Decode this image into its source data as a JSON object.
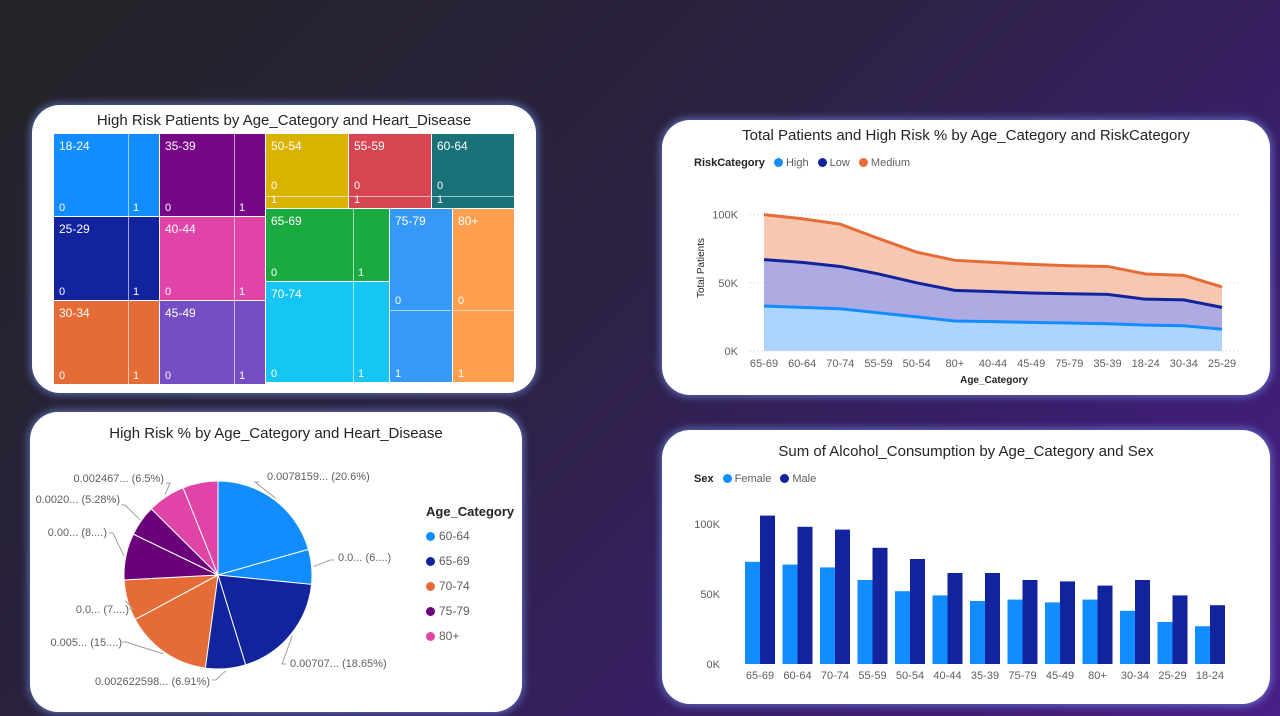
{
  "chart_data": [
    {
      "type": "treemap",
      "title": "High Risk Patients by Age_Category and Heart_Disease",
      "cells": [
        {
          "category": "18-24",
          "labels": [
            "0",
            "1"
          ],
          "color": "#118DFF"
        },
        {
          "category": "35-39",
          "labels": [
            "0",
            "1"
          ],
          "color": "#750985"
        },
        {
          "category": "50-54",
          "labels": [
            "0",
            "1"
          ],
          "color": "#D9B300"
        },
        {
          "category": "55-59",
          "labels": [
            "0",
            "1"
          ],
          "color": "#D64550"
        },
        {
          "category": "60-64",
          "labels": [
            "0",
            "1"
          ],
          "color": "#197278"
        },
        {
          "category": "25-29",
          "labels": [
            "0",
            "1"
          ],
          "color": "#12239E"
        },
        {
          "category": "40-44",
          "labels": [
            "0",
            "1"
          ],
          "color": "#E044A7"
        },
        {
          "category": "65-69",
          "labels": [
            "0",
            "1"
          ],
          "color": "#1AAB40"
        },
        {
          "category": "75-79",
          "labels": [
            "0",
            "1"
          ],
          "color": "#3599F8"
        },
        {
          "category": "80+",
          "labels": [
            "0",
            "1"
          ],
          "color": "#FE9F4F"
        },
        {
          "category": "30-34",
          "labels": [
            "0",
            "1"
          ],
          "color": "#E66C37"
        },
        {
          "category": "45-49",
          "labels": [
            "0",
            "1"
          ],
          "color": "#744EC2"
        },
        {
          "category": "70-74",
          "labels": [
            "0",
            "1"
          ],
          "color": "#15C6F4"
        }
      ]
    },
    {
      "type": "area",
      "title": "Total Patients and High Risk % by Age_Category and RiskCategory",
      "legend_title": "RiskCategory",
      "xlabel": "Age_Category",
      "ylabel": "Total Patients",
      "categories": [
        "65-69",
        "60-64",
        "70-74",
        "55-59",
        "50-54",
        "80+",
        "40-44",
        "45-49",
        "75-79",
        "35-39",
        "18-24",
        "30-34",
        "25-29"
      ],
      "yticks": [
        "0K",
        "50K",
        "100K"
      ],
      "ylim": [
        0,
        110000
      ],
      "stacked": true,
      "series": [
        {
          "name": "High",
          "color": "#118DFF",
          "values": [
            33000,
            32000,
            31000,
            28000,
            25000,
            22000,
            21500,
            21000,
            20500,
            20000,
            19000,
            18500,
            16000
          ]
        },
        {
          "name": "Low",
          "color": "#12239E",
          "values": [
            34000,
            33000,
            31000,
            28500,
            25000,
            22500,
            22000,
            21500,
            21500,
            21500,
            19000,
            19000,
            16000
          ]
        },
        {
          "name": "Medium",
          "color": "#E66C37",
          "values": [
            33000,
            32000,
            31000,
            26000,
            22500,
            22000,
            21500,
            21000,
            20500,
            20500,
            18500,
            18000,
            15000
          ]
        }
      ]
    },
    {
      "type": "pie",
      "title": "High Risk % by Age_Category and Heart_Disease",
      "legend_title": "Age_Category",
      "legend": [
        {
          "name": "60-64",
          "color": "#118DFF"
        },
        {
          "name": "65-69",
          "color": "#12239E"
        },
        {
          "name": "70-74",
          "color": "#E66C37"
        },
        {
          "name": "75-79",
          "color": "#6B007B"
        },
        {
          "name": "80+",
          "color": "#E044A7"
        }
      ],
      "slices": [
        {
          "category": "60-64",
          "heart_disease": "0",
          "percent": 20.6,
          "label": "0.0078159... (20.6%)",
          "color": "#118DFF"
        },
        {
          "category": "60-64",
          "heart_disease": "1",
          "percent": 6.0,
          "label": "0.0... (6....)",
          "color": "#118DFF"
        },
        {
          "category": "65-69",
          "heart_disease": "0",
          "percent": 18.65,
          "label": "0.00707... (18.65%)",
          "color": "#12239E"
        },
        {
          "category": "65-69",
          "heart_disease": "1",
          "percent": 6.91,
          "label": "0.002622598... (6.91%)",
          "color": "#12239E"
        },
        {
          "category": "70-74",
          "heart_disease": "0",
          "percent": 15.0,
          "label": "0.005... (15....)",
          "color": "#E66C37"
        },
        {
          "category": "70-74",
          "heart_disease": "1",
          "percent": 7.0,
          "label": "0.0... (7....)",
          "color": "#E66C37"
        },
        {
          "category": "75-79",
          "heart_disease": "0",
          "percent": 8.0,
          "label": "0.00... (8....)",
          "color": "#6B007B"
        },
        {
          "category": "75-79",
          "heart_disease": "1",
          "percent": 5.28,
          "label": "0.0020... (5.28%)",
          "color": "#6B007B"
        },
        {
          "category": "80+",
          "heart_disease": "0",
          "percent": 6.5,
          "label": "0.002467... (6.5%)",
          "color": "#E044A7"
        },
        {
          "category": "80+",
          "heart_disease": "1",
          "percent": 6.06,
          "label": "",
          "color": "#E044A7"
        }
      ]
    },
    {
      "type": "bar",
      "title": "Sum of Alcohol_Consumption by Age_Category and Sex",
      "legend_title": "Sex",
      "categories": [
        "65-69",
        "60-64",
        "70-74",
        "55-59",
        "50-54",
        "40-44",
        "35-39",
        "75-79",
        "45-49",
        "80+",
        "30-34",
        "25-29",
        "18-24"
      ],
      "yticks": [
        "0K",
        "50K",
        "100K"
      ],
      "ylim": [
        0,
        110000
      ],
      "series": [
        {
          "name": "Female",
          "color": "#118DFF",
          "values": [
            73000,
            71000,
            69000,
            60000,
            52000,
            49000,
            45000,
            46000,
            44000,
            46000,
            38000,
            30000,
            27000
          ]
        },
        {
          "name": "Male",
          "color": "#12239E",
          "values": [
            106000,
            98000,
            96000,
            83000,
            75000,
            65000,
            65000,
            60000,
            59000,
            56000,
            60000,
            49000,
            42000
          ]
        }
      ]
    }
  ]
}
